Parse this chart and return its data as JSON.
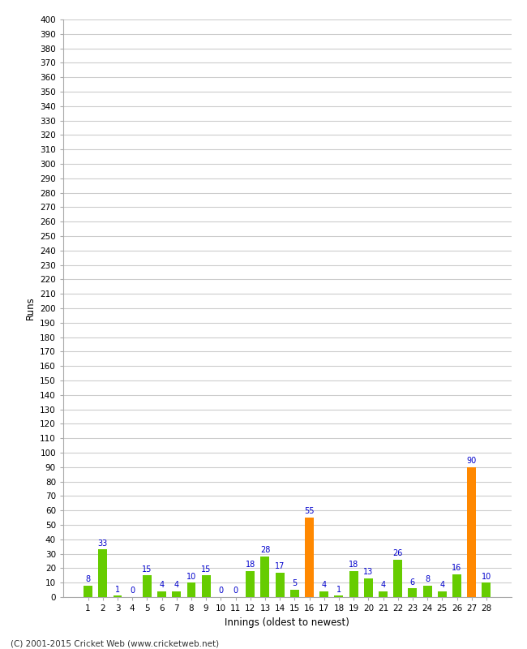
{
  "xlabel": "Innings (oldest to newest)",
  "ylabel": "Runs",
  "categories": [
    1,
    2,
    3,
    4,
    5,
    6,
    7,
    8,
    9,
    10,
    11,
    12,
    13,
    14,
    15,
    16,
    17,
    18,
    19,
    20,
    21,
    22,
    23,
    24,
    25,
    26,
    27,
    28
  ],
  "values": [
    8,
    33,
    1,
    0,
    15,
    4,
    4,
    10,
    15,
    0,
    0,
    18,
    28,
    17,
    5,
    55,
    4,
    1,
    18,
    13,
    4,
    26,
    6,
    8,
    4,
    16,
    90,
    10
  ],
  "colors": [
    "#66cc00",
    "#66cc00",
    "#66cc00",
    "#66cc00",
    "#66cc00",
    "#66cc00",
    "#66cc00",
    "#66cc00",
    "#66cc00",
    "#66cc00",
    "#66cc00",
    "#66cc00",
    "#66cc00",
    "#66cc00",
    "#66cc00",
    "#ff8800",
    "#66cc00",
    "#66cc00",
    "#66cc00",
    "#66cc00",
    "#66cc00",
    "#66cc00",
    "#66cc00",
    "#66cc00",
    "#66cc00",
    "#66cc00",
    "#ff8800",
    "#66cc00"
  ],
  "ylim": [
    0,
    400
  ],
  "label_color": "#0000cc",
  "background_color": "#ffffff",
  "grid_color": "#cccccc",
  "footer": "(C) 2001-2015 Cricket Web (www.cricketweb.net)"
}
